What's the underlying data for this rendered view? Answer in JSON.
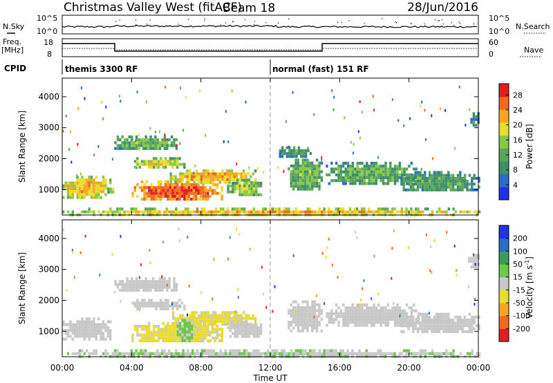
{
  "header": {
    "station": "Christmas Valley West (fitACF)",
    "beam": "Beam 18",
    "date": "28/Jun/2016"
  },
  "top_panel": {
    "nsky_label": "N.Sky",
    "nsky_ticks": [
      "10^5",
      "10^0"
    ],
    "nsearch_label": "N.Search",
    "nsearch_ticks": [
      "10^5",
      "10^0"
    ],
    "freq_label_1": "Freq.",
    "freq_label_2": "[MHz]",
    "freq_ticks": [
      "18",
      "8"
    ],
    "nave_label": "Nave",
    "nave_ticks": [
      "60",
      "0"
    ],
    "cpid_label": "CPID",
    "modes": [
      {
        "start": 0,
        "label": "themis 3300 RF"
      },
      {
        "start": 12,
        "label": "normal (fast) 151 RF"
      }
    ]
  },
  "chart_data": [
    {
      "type": "heatmap",
      "name": "power",
      "ylabel": "Slant Range [km]",
      "y_ticks": [
        "1000",
        "2000",
        "3000",
        "4000"
      ],
      "ylim": [
        180,
        4600
      ],
      "xlim": [
        0,
        24
      ],
      "colorbar": {
        "label": "Power [dB]",
        "ticks": [
          "4",
          "8",
          "12",
          "16",
          "20",
          "24",
          "28"
        ],
        "range": [
          0,
          31
        ],
        "colors": [
          "#1f32e6",
          "#2a6cc8",
          "#3c8f6a",
          "#5aa55a",
          "#86c84a",
          "#e8dc30",
          "#f5a623",
          "#ef6a1e",
          "#e02020"
        ]
      },
      "regions": [
        {
          "x": [
            0.0,
            2.8
          ],
          "y": [
            750,
            1450
          ],
          "level": 0.72
        },
        {
          "x": [
            2.6,
            3.0
          ],
          "y": [
            900,
            1150
          ],
          "level": 0.55
        },
        {
          "x": [
            4.0,
            9.2
          ],
          "y": [
            650,
            1300
          ],
          "level": 0.92
        },
        {
          "x": [
            6.2,
            11.2
          ],
          "y": [
            1250,
            1650
          ],
          "level": 0.78
        },
        {
          "x": [
            4.0,
            7.0
          ],
          "y": [
            1750,
            2050
          ],
          "level": 0.62
        },
        {
          "x": [
            3.0,
            6.6
          ],
          "y": [
            2300,
            2750
          ],
          "level": 0.45
        },
        {
          "x": [
            9.5,
            11.5
          ],
          "y": [
            850,
            1350
          ],
          "level": 0.55
        },
        {
          "x": [
            0.0,
            24.0
          ],
          "y": [
            200,
            420
          ],
          "level": 0.7
        },
        {
          "x": [
            13.0,
            15.0
          ],
          "y": [
            1000,
            2000
          ],
          "level": 0.45
        },
        {
          "x": [
            15.2,
            20.5
          ],
          "y": [
            1200,
            1900
          ],
          "level": 0.42
        },
        {
          "x": [
            19.5,
            24.0
          ],
          "y": [
            950,
            1600
          ],
          "level": 0.38
        },
        {
          "x": [
            23.4,
            24.0
          ],
          "y": [
            3100,
            3500
          ],
          "level": 0.3
        },
        {
          "x": [
            12.5,
            14.3
          ],
          "y": [
            2100,
            2400
          ],
          "level": 0.35
        }
      ]
    },
    {
      "type": "heatmap",
      "name": "velocity",
      "ylabel": "Slant Range [km]",
      "y_ticks": [
        "1000",
        "2000",
        "3000",
        "4000"
      ],
      "ylim": [
        180,
        4600
      ],
      "xlim": [
        0,
        24
      ],
      "colorbar": {
        "label": "Velocity [m s",
        "label_sup": "-1",
        "label_end": "]",
        "ticks": [
          "-200",
          "-100",
          "-50",
          "-15",
          "15",
          "50",
          "100",
          "200"
        ],
        "range": [
          -250,
          250
        ],
        "colors": [
          "#e02020",
          "#ef6a1e",
          "#f5a623",
          "#e8dc30",
          "#c8c8c8",
          "#6cc84a",
          "#3c9a5a",
          "#2a6cc8",
          "#1f32e6"
        ]
      },
      "regions": [
        {
          "x": [
            0.0,
            2.8
          ],
          "y": [
            750,
            1450
          ],
          "v": 0
        },
        {
          "x": [
            4.0,
            9.2
          ],
          "y": [
            650,
            1300
          ],
          "v": -40
        },
        {
          "x": [
            6.2,
            11.2
          ],
          "y": [
            1250,
            1650
          ],
          "v": -40
        },
        {
          "x": [
            6.6,
            7.6
          ],
          "y": [
            700,
            1400
          ],
          "v": 35
        },
        {
          "x": [
            4.0,
            7.0
          ],
          "y": [
            1750,
            2050
          ],
          "v": 0
        },
        {
          "x": [
            3.0,
            6.6
          ],
          "y": [
            2300,
            2750
          ],
          "v": 0
        },
        {
          "x": [
            9.5,
            11.5
          ],
          "y": [
            850,
            1350
          ],
          "v": 0
        },
        {
          "x": [
            0.0,
            24.0
          ],
          "y": [
            200,
            420
          ],
          "v": 20
        },
        {
          "x": [
            13.0,
            15.0
          ],
          "y": [
            1000,
            2000
          ],
          "v": 0
        },
        {
          "x": [
            15.2,
            20.5
          ],
          "y": [
            1200,
            1900
          ],
          "v": 0
        },
        {
          "x": [
            19.5,
            24.0
          ],
          "y": [
            950,
            1600
          ],
          "v": 0
        },
        {
          "x": [
            23.4,
            24.0
          ],
          "y": [
            3100,
            3500
          ],
          "v": 0
        }
      ]
    }
  ],
  "x_axis": {
    "ticks": [
      "00:00",
      "04:00",
      "08:00",
      "12:00",
      "16:00",
      "20:00",
      "00:00"
    ],
    "label": "Time UT"
  }
}
